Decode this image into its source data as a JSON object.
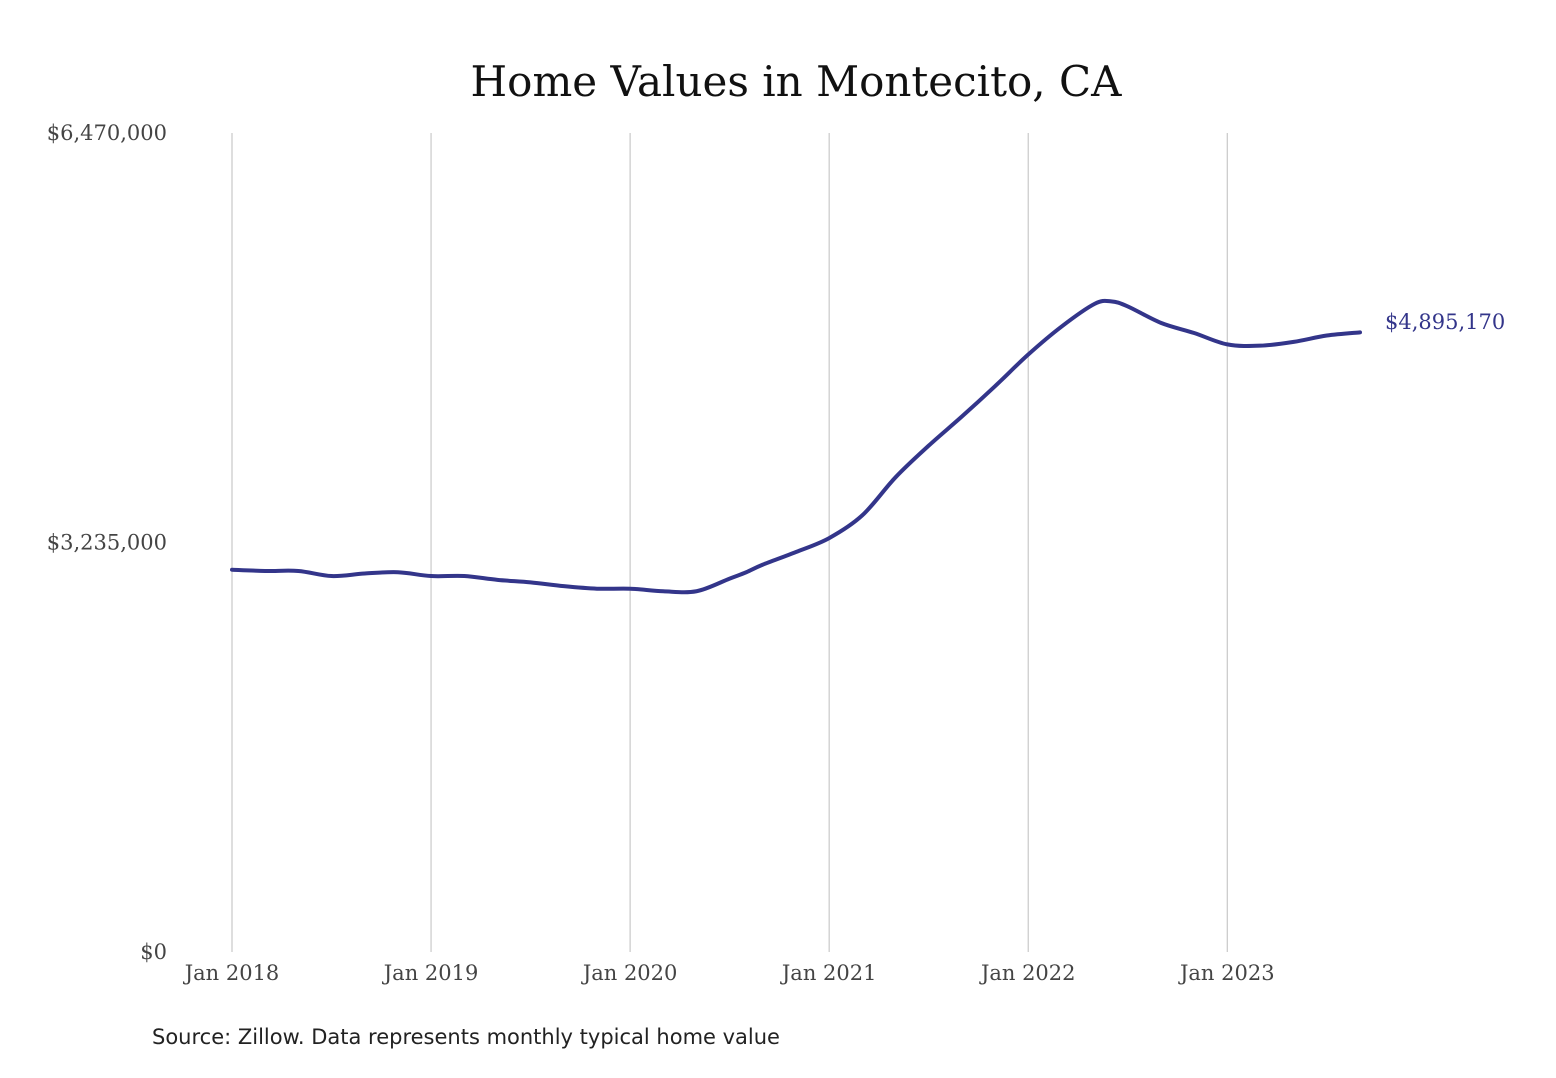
{
  "chart_data": {
    "type": "line",
    "title": "Home Values in Montecito, CA",
    "source_note": "Source: Zillow. Data represents monthly typical home value",
    "ylim": [
      0,
      6470000
    ],
    "y_ticks": [
      {
        "value": 0,
        "label": "$0"
      },
      {
        "value": 3235000,
        "label": "$3,235,000"
      },
      {
        "value": 6470000,
        "label": "$6,470,000"
      }
    ],
    "x_range": [
      "2018-01",
      "2023-09"
    ],
    "x_ticks": [
      {
        "value": "2018-01",
        "label": "Jan 2018"
      },
      {
        "value": "2019-01",
        "label": "Jan 2019"
      },
      {
        "value": "2020-01",
        "label": "Jan 2020"
      },
      {
        "value": "2021-01",
        "label": "Jan 2021"
      },
      {
        "value": "2022-01",
        "label": "Jan 2022"
      },
      {
        "value": "2023-01",
        "label": "Jan 2023"
      }
    ],
    "grid": "vertical",
    "line_color": "#33358a",
    "end_label": "$4,895,170",
    "series": [
      {
        "x": [
          "2018-01",
          "2018-03",
          "2018-05",
          "2018-07",
          "2018-09",
          "2018-11",
          "2019-01",
          "2019-03",
          "2019-05",
          "2019-07",
          "2019-09",
          "2019-11",
          "2020-01",
          "2020-03",
          "2020-05",
          "2020-07",
          "2020-08",
          "2020-09",
          "2020-11",
          "2021-01",
          "2021-03",
          "2021-05",
          "2021-07",
          "2021-09",
          "2021-11",
          "2022-01",
          "2022-03",
          "2022-05",
          "2022-06",
          "2022-07",
          "2022-09",
          "2022-11",
          "2023-01",
          "2023-03",
          "2023-05",
          "2023-07",
          "2023-09"
        ],
        "values": [
          3020000,
          3010000,
          3010000,
          2970000,
          2990000,
          3000000,
          2970000,
          2970000,
          2940000,
          2920000,
          2890000,
          2870000,
          2870000,
          2850000,
          2850000,
          2950000,
          3000000,
          3060000,
          3160000,
          3270000,
          3450000,
          3750000,
          4000000,
          4230000,
          4470000,
          4720000,
          4940000,
          5120000,
          5140000,
          5100000,
          4970000,
          4890000,
          4800000,
          4790000,
          4820000,
          4870000,
          4895170
        ]
      }
    ]
  }
}
